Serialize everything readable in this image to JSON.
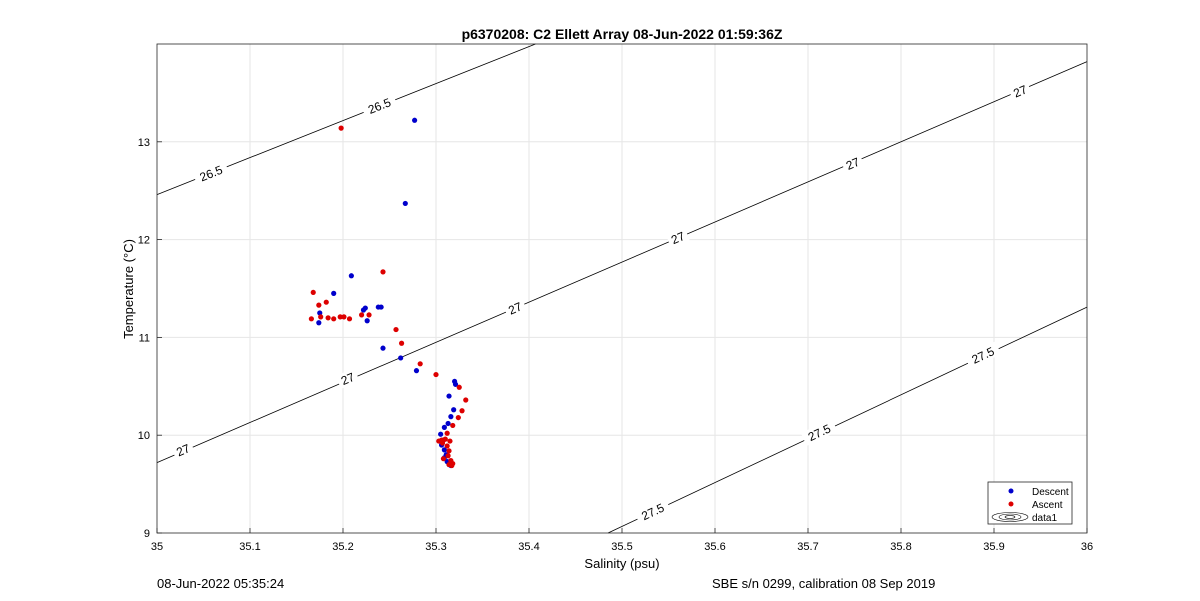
{
  "footer": {
    "left": "08-Jun-2022 05:35:24",
    "right": "SBE s/n 0299, calibration 08 Sep 2019"
  },
  "chart_data": {
    "type": "scatter",
    "title": "p6370208: C2 Ellett Array 08-Jun-2022 01:59:36Z",
    "xlabel": "Salinity (psu)",
    "ylabel": "Temperature (°C)",
    "xlim": [
      35,
      36
    ],
    "ylim": [
      9,
      14
    ],
    "xticks": [
      "35",
      "35.1",
      "35.2",
      "35.3",
      "35.4",
      "35.5",
      "35.6",
      "35.7",
      "35.8",
      "35.9",
      "36"
    ],
    "yticks": [
      "9",
      "10",
      "11",
      "12",
      "13"
    ],
    "grid": true,
    "legend_position": "bottom-right",
    "legend": [
      "Descent",
      "Ascent",
      "data1"
    ],
    "series": [
      {
        "name": "Descent",
        "color": "#0000cc",
        "points": [
          [
            35.277,
            13.22
          ],
          [
            35.267,
            12.37
          ],
          [
            35.209,
            11.63
          ],
          [
            35.19,
            11.45
          ],
          [
            35.175,
            11.25
          ],
          [
            35.174,
            11.15
          ],
          [
            35.222,
            11.28
          ],
          [
            35.224,
            11.3
          ],
          [
            35.238,
            11.31
          ],
          [
            35.241,
            11.31
          ],
          [
            35.226,
            11.17
          ],
          [
            35.243,
            10.89
          ],
          [
            35.262,
            10.79
          ],
          [
            35.279,
            10.66
          ],
          [
            35.305,
            10.01
          ],
          [
            35.309,
            10.08
          ],
          [
            35.314,
            10.4
          ],
          [
            35.32,
            10.55
          ],
          [
            35.321,
            10.52
          ],
          [
            35.319,
            10.26
          ],
          [
            35.316,
            10.19
          ],
          [
            35.313,
            10.12
          ],
          [
            35.308,
            9.95
          ],
          [
            35.306,
            9.9
          ],
          [
            35.309,
            9.85
          ],
          [
            35.311,
            9.8
          ],
          [
            35.309,
            9.77
          ],
          [
            35.312,
            9.73
          ],
          [
            35.314,
            9.7
          ],
          [
            35.316,
            9.69
          ]
        ]
      },
      {
        "name": "Ascent",
        "color": "#dd0000",
        "points": [
          [
            35.198,
            13.14
          ],
          [
            35.243,
            11.67
          ],
          [
            35.168,
            11.46
          ],
          [
            35.174,
            11.33
          ],
          [
            35.182,
            11.36
          ],
          [
            35.166,
            11.19
          ],
          [
            35.176,
            11.21
          ],
          [
            35.184,
            11.2
          ],
          [
            35.19,
            11.19
          ],
          [
            35.197,
            11.21
          ],
          [
            35.201,
            11.21
          ],
          [
            35.207,
            11.19
          ],
          [
            35.22,
            11.23
          ],
          [
            35.228,
            11.23
          ],
          [
            35.257,
            11.08
          ],
          [
            35.263,
            10.94
          ],
          [
            35.283,
            10.73
          ],
          [
            35.3,
            10.62
          ],
          [
            35.325,
            10.49
          ],
          [
            35.332,
            10.36
          ],
          [
            35.328,
            10.25
          ],
          [
            35.324,
            10.18
          ],
          [
            35.318,
            10.1
          ],
          [
            35.312,
            10.02
          ],
          [
            35.31,
            9.96
          ],
          [
            35.306,
            9.95
          ],
          [
            35.303,
            9.94
          ],
          [
            35.307,
            9.92
          ],
          [
            35.315,
            9.94
          ],
          [
            35.312,
            9.89
          ],
          [
            35.314,
            9.84
          ],
          [
            35.313,
            9.79
          ],
          [
            35.308,
            9.76
          ],
          [
            35.316,
            9.74
          ],
          [
            35.318,
            9.71
          ],
          [
            35.314,
            9.7
          ],
          [
            35.317,
            9.69
          ]
        ]
      }
    ],
    "contours": [
      {
        "label": "26.5",
        "endpoints": [
          [
            35.0,
            12.46
          ],
          [
            35.407,
            14.0
          ]
        ],
        "label_positions": [
          [
            35.058,
            12.68
          ],
          [
            35.239,
            13.37
          ]
        ]
      },
      {
        "label": "27",
        "endpoints": [
          [
            35.0,
            9.72
          ],
          [
            36.0,
            13.82
          ]
        ],
        "label_positions": [
          [
            35.028,
            9.85
          ],
          [
            35.205,
            10.58
          ],
          [
            35.385,
            11.3
          ],
          [
            35.56,
            12.02
          ],
          [
            35.748,
            12.78
          ],
          [
            35.928,
            13.52
          ]
        ]
      },
      {
        "label": "27.5",
        "endpoints": [
          [
            35.485,
            9.0
          ],
          [
            36.0,
            11.31
          ]
        ],
        "label_positions": [
          [
            35.533,
            9.22
          ],
          [
            35.712,
            10.03
          ],
          [
            35.888,
            10.82
          ]
        ]
      }
    ]
  }
}
